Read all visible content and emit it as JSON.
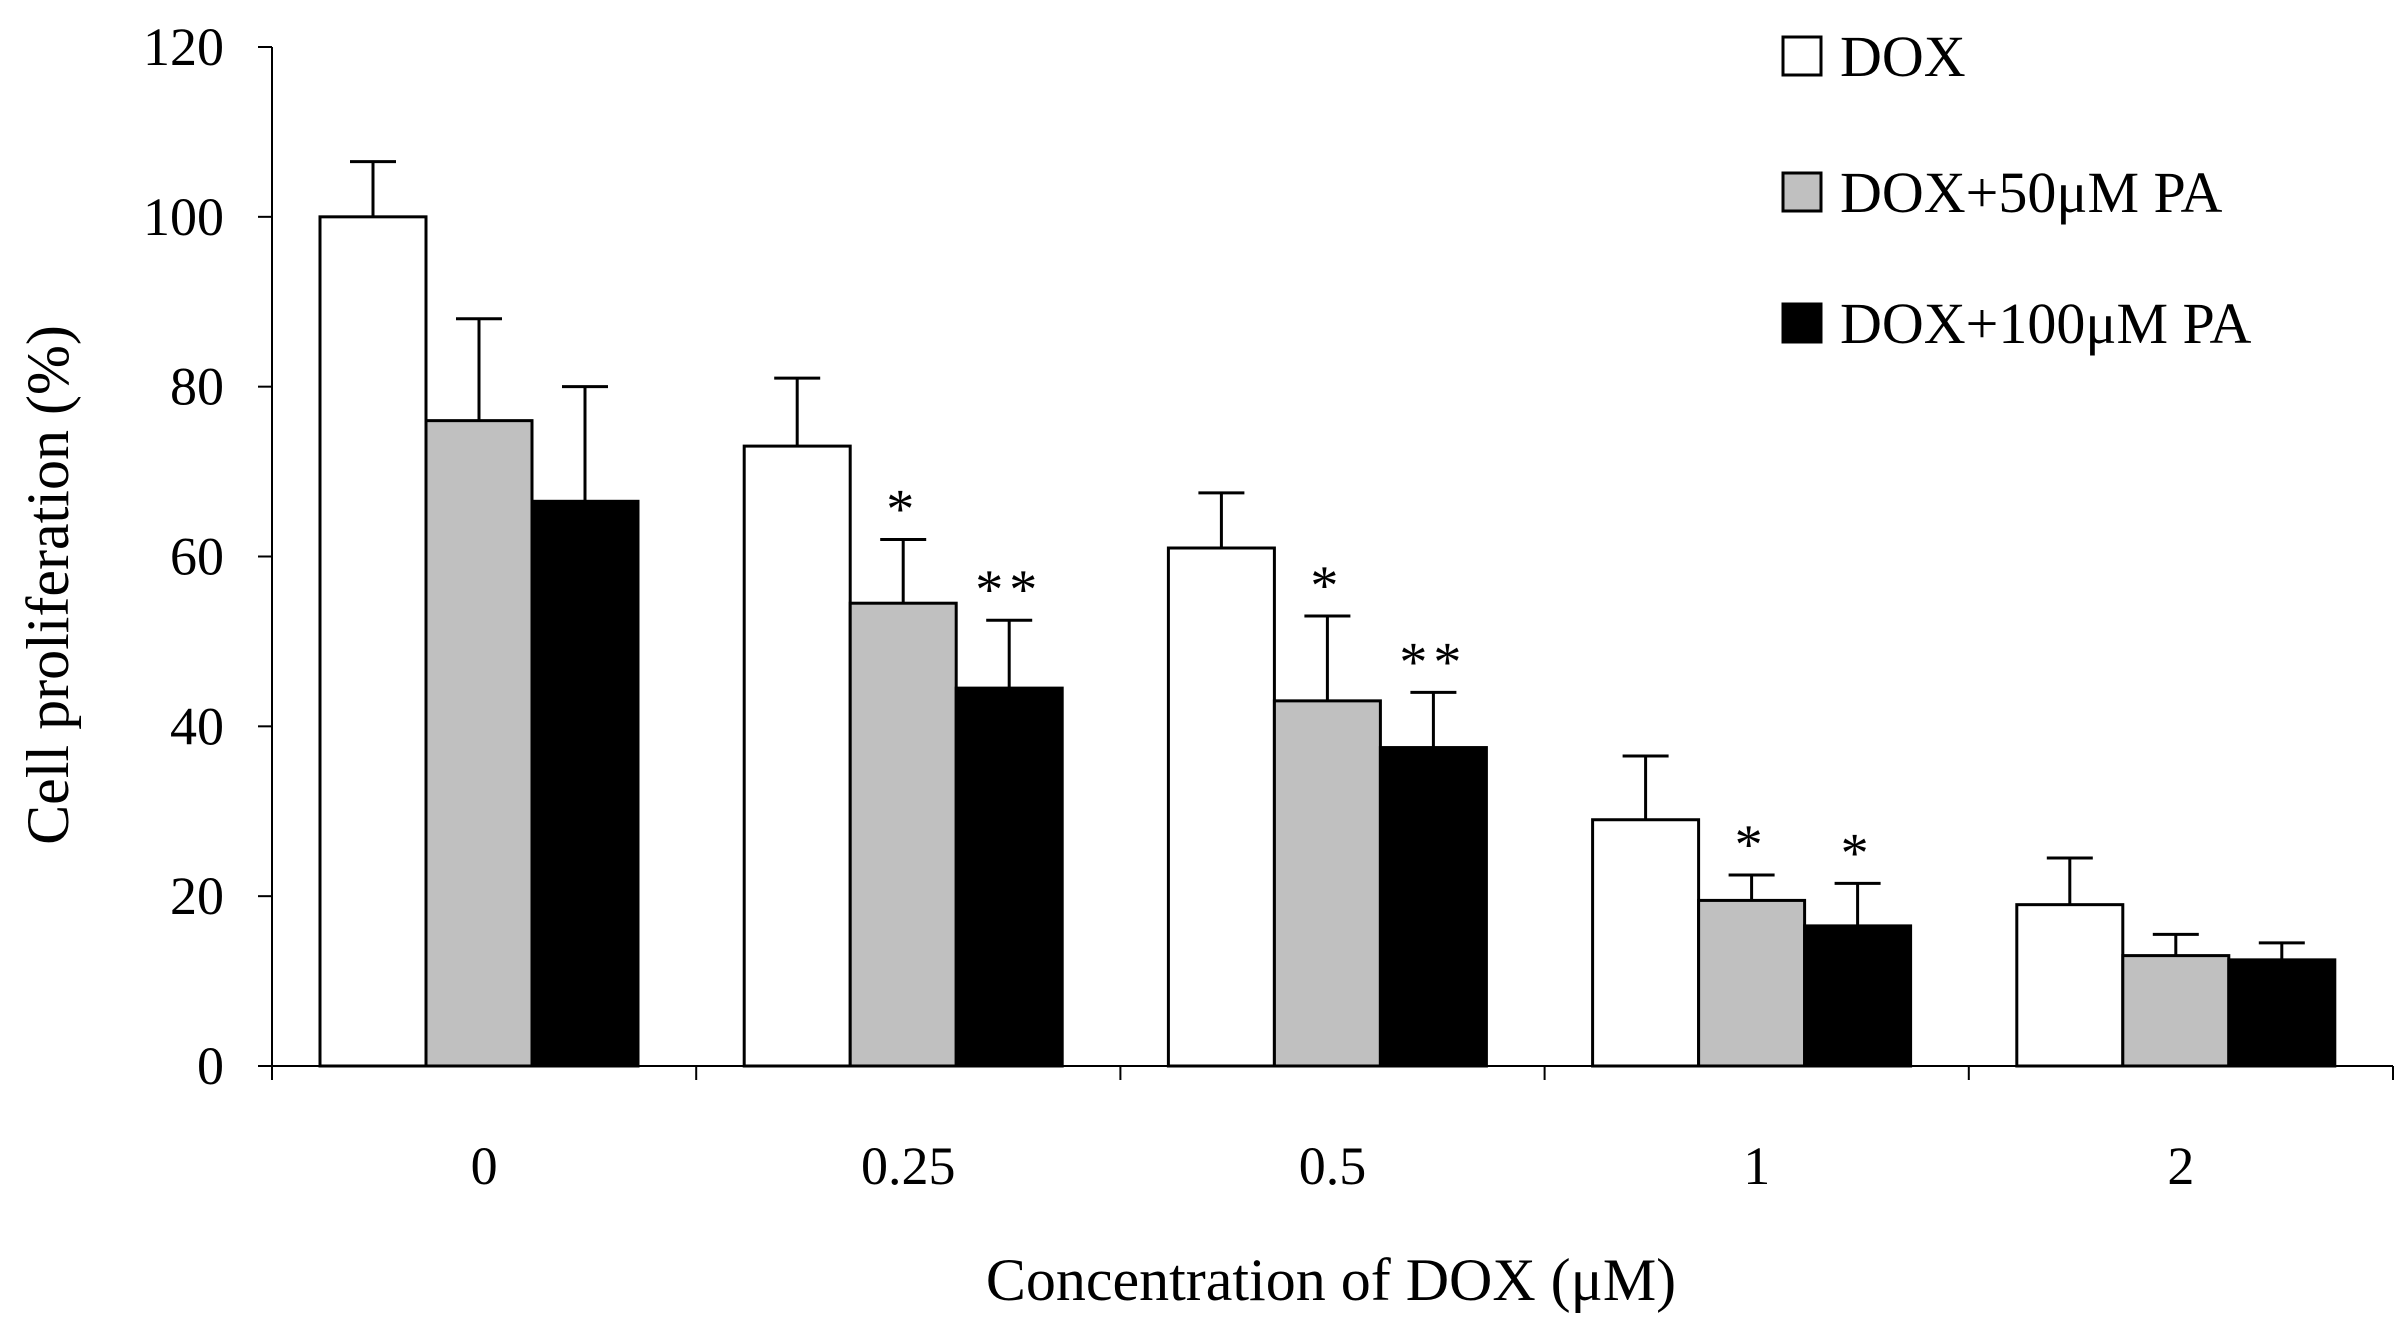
{
  "chart_data": {
    "type": "bar",
    "title": "",
    "xlabel": "Concentration of DOX (μM)",
    "ylabel": "Cell proliferation (%)",
    "ylim": [
      0,
      120
    ],
    "yticks": [
      "0",
      "20",
      "40",
      "60",
      "80",
      "100",
      "120"
    ],
    "categories": [
      "0",
      "0.25",
      "0.5",
      "1",
      "2"
    ],
    "legend_position": "top-right",
    "series": [
      {
        "name": "DOX",
        "color": "#ffffff",
        "values": [
          100,
          73,
          61,
          29,
          19
        ],
        "errors": [
          6.5,
          8,
          6.5,
          7.5,
          5.5
        ],
        "significance": [
          "",
          "",
          "",
          "",
          ""
        ]
      },
      {
        "name": "DOX+50μM PA",
        "color": "#c0c0c0",
        "values": [
          76,
          54.5,
          43,
          19.5,
          13
        ],
        "errors": [
          12,
          7.5,
          10,
          3,
          2.5
        ],
        "significance": [
          "",
          "*",
          "*",
          "*",
          ""
        ]
      },
      {
        "name": "DOX+100μM PA",
        "color": "#000000",
        "values": [
          66.5,
          44.5,
          37.5,
          16.5,
          12.5
        ],
        "errors": [
          13.5,
          8,
          6.5,
          5,
          2
        ],
        "significance": [
          "",
          "**",
          "**",
          "*",
          ""
        ]
      }
    ]
  }
}
